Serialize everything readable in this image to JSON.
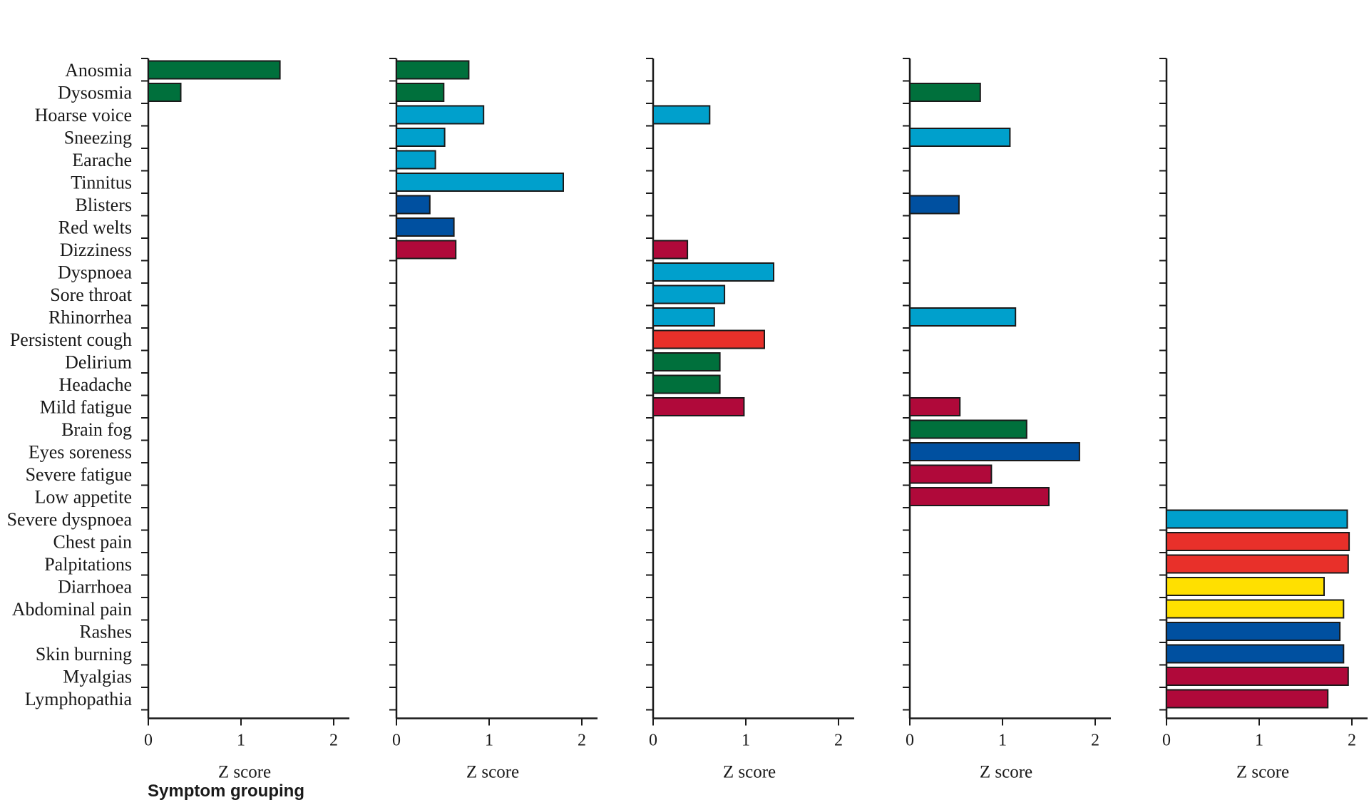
{
  "chart_data": {
    "type": "bar",
    "orientation": "horizontal",
    "categories": [
      "Anosmia",
      "Dysosmia",
      "Hoarse voice",
      "Sneezing",
      "Earache",
      "Tinnitus",
      "Blisters",
      "Red welts",
      "Dizziness",
      "Dyspnoea",
      "Sore throat",
      "Rhinorrhea",
      "Persistent cough",
      "Delirium",
      "Headache",
      "Mild fatigue",
      "Brain fog",
      "Eyes soreness",
      "Severe fatigue",
      "Low appetite",
      "Severe dyspnoea",
      "Chest pain",
      "Palpitations",
      "Diarrhoea",
      "Abdominal pain",
      "Rashes",
      "Skin burning",
      "Myalgias",
      "Lymphopathia"
    ],
    "xlabel": "Z score",
    "xlim": [
      0,
      2
    ],
    "xticks": [
      "0",
      "1",
      "2"
    ],
    "grid": false,
    "footer": "Symptom grouping",
    "colors": {
      "green": "#00703c",
      "light_blue": "#00a0cc",
      "dark_blue": "#0050a0",
      "crimson": "#b0093a",
      "red": "#e8302a",
      "yellow": "#ffe000"
    },
    "panels": [
      {
        "bars": [
          {
            "symptom": "Anosmia",
            "value": 1.42,
            "color": "green"
          },
          {
            "symptom": "Dysosmia",
            "value": 0.35,
            "color": "green"
          }
        ]
      },
      {
        "bars": [
          {
            "symptom": "Anosmia",
            "value": 0.78,
            "color": "green"
          },
          {
            "symptom": "Dysosmia",
            "value": 0.51,
            "color": "green"
          },
          {
            "symptom": "Hoarse voice",
            "value": 0.94,
            "color": "light_blue"
          },
          {
            "symptom": "Sneezing",
            "value": 0.52,
            "color": "light_blue"
          },
          {
            "symptom": "Earache",
            "value": 0.42,
            "color": "light_blue"
          },
          {
            "symptom": "Tinnitus",
            "value": 1.8,
            "color": "light_blue"
          },
          {
            "symptom": "Blisters",
            "value": 0.36,
            "color": "dark_blue"
          },
          {
            "symptom": "Red welts",
            "value": 0.62,
            "color": "dark_blue"
          },
          {
            "symptom": "Dizziness",
            "value": 0.64,
            "color": "crimson"
          }
        ]
      },
      {
        "bars": [
          {
            "symptom": "Hoarse voice",
            "value": 0.61,
            "color": "light_blue"
          },
          {
            "symptom": "Dizziness",
            "value": 0.37,
            "color": "crimson"
          },
          {
            "symptom": "Dyspnoea",
            "value": 1.3,
            "color": "light_blue"
          },
          {
            "symptom": "Sore throat",
            "value": 0.77,
            "color": "light_blue"
          },
          {
            "symptom": "Rhinorrhea",
            "value": 0.66,
            "color": "light_blue"
          },
          {
            "symptom": "Persistent cough",
            "value": 1.2,
            "color": "red"
          },
          {
            "symptom": "Delirium",
            "value": 0.72,
            "color": "green"
          },
          {
            "symptom": "Headache",
            "value": 0.72,
            "color": "green"
          },
          {
            "symptom": "Mild fatigue",
            "value": 0.98,
            "color": "crimson"
          }
        ]
      },
      {
        "bars": [
          {
            "symptom": "Dysosmia",
            "value": 0.76,
            "color": "green"
          },
          {
            "symptom": "Sneezing",
            "value": 1.08,
            "color": "light_blue"
          },
          {
            "symptom": "Blisters",
            "value": 0.53,
            "color": "dark_blue"
          },
          {
            "symptom": "Rhinorrhea",
            "value": 1.14,
            "color": "light_blue"
          },
          {
            "symptom": "Mild fatigue",
            "value": 0.54,
            "color": "crimson"
          },
          {
            "symptom": "Brain fog",
            "value": 1.26,
            "color": "green"
          },
          {
            "symptom": "Eyes soreness",
            "value": 1.83,
            "color": "dark_blue"
          },
          {
            "symptom": "Severe fatigue",
            "value": 0.88,
            "color": "crimson"
          },
          {
            "symptom": "Low appetite",
            "value": 1.5,
            "color": "crimson"
          }
        ]
      },
      {
        "bars": [
          {
            "symptom": "Severe dyspnoea",
            "value": 1.95,
            "color": "light_blue"
          },
          {
            "symptom": "Chest pain",
            "value": 1.97,
            "color": "red"
          },
          {
            "symptom": "Palpitations",
            "value": 1.96,
            "color": "red"
          },
          {
            "symptom": "Diarrhoea",
            "value": 1.7,
            "color": "yellow"
          },
          {
            "symptom": "Abdominal pain",
            "value": 1.91,
            "color": "yellow"
          },
          {
            "symptom": "Rashes",
            "value": 1.87,
            "color": "dark_blue"
          },
          {
            "symptom": "Skin burning",
            "value": 1.91,
            "color": "dark_blue"
          },
          {
            "symptom": "Myalgias",
            "value": 1.96,
            "color": "crimson"
          },
          {
            "symptom": "Lymphopathia",
            "value": 1.74,
            "color": "crimson"
          }
        ]
      }
    ]
  }
}
